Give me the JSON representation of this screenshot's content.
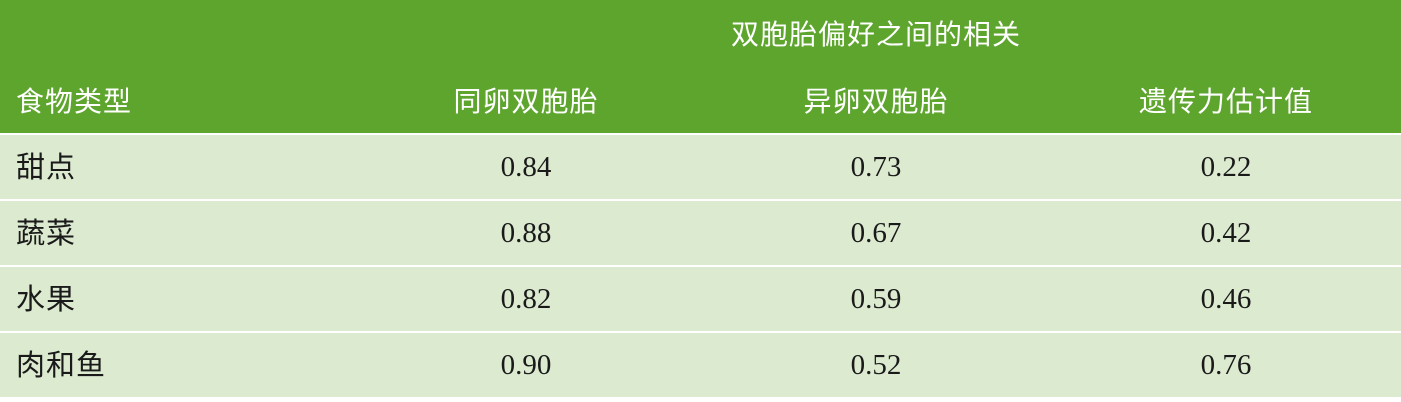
{
  "header": {
    "group_title": "双胞胎偏好之间的相关",
    "col_food": "食物类型",
    "col_mz": "同卵双胞胎",
    "col_dz": "异卵双胞胎",
    "col_heritability": "遗传力估计值"
  },
  "rows": [
    {
      "food": "甜点",
      "mz": "0.84",
      "dz": "0.73",
      "heritability": "0.22"
    },
    {
      "food": "蔬菜",
      "mz": "0.88",
      "dz": "0.67",
      "heritability": "0.42"
    },
    {
      "food": "水果",
      "mz": "0.82",
      "dz": "0.59",
      "heritability": "0.46"
    },
    {
      "food": "肉和鱼",
      "mz": "0.90",
      "dz": "0.52",
      "heritability": "0.76"
    }
  ],
  "colors": {
    "header_bg": "#5ea52e",
    "row_bg": "#dcead0",
    "separator": "#ffffff"
  }
}
